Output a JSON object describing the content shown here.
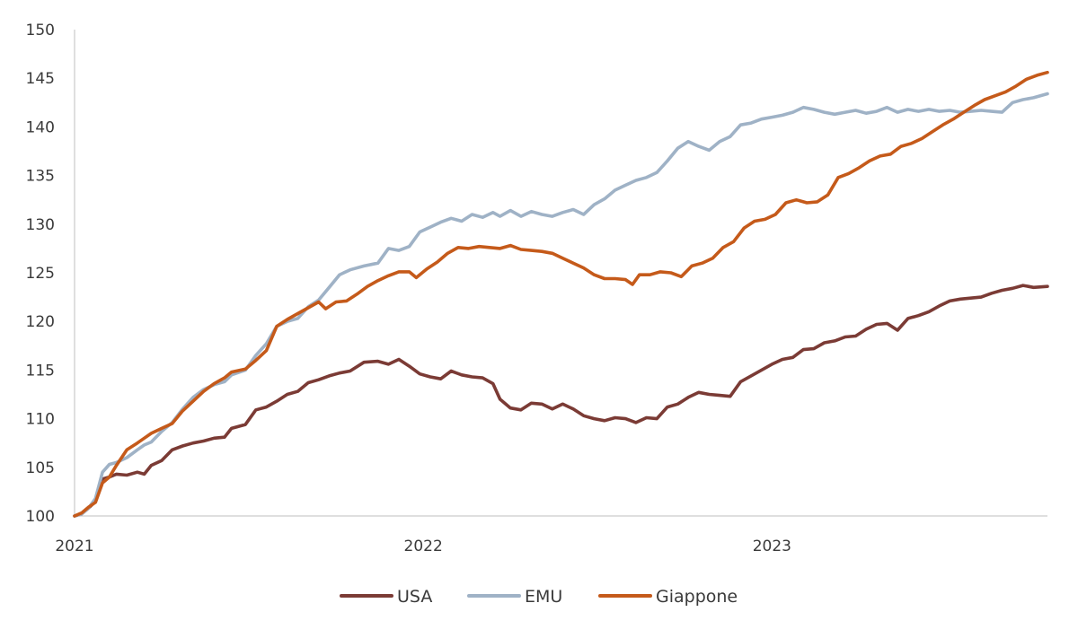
{
  "chart_data": {
    "type": "line",
    "title": "",
    "xlabel": "",
    "ylabel": "",
    "xlim": [
      2021.0,
      2023.79
    ],
    "ylim": [
      100,
      150
    ],
    "x_ticks": [
      "2021",
      "2022",
      "2023"
    ],
    "y_ticks": [
      "100",
      "105",
      "110",
      "115",
      "120",
      "125",
      "130",
      "135",
      "140",
      "145",
      "150"
    ],
    "grid": false,
    "legend_position": "bottom-center",
    "series": [
      {
        "name": "USA",
        "color": "#7b3b35",
        "points": [
          [
            2021.0,
            100.0
          ],
          [
            2021.02,
            100.2
          ],
          [
            2021.04,
            100.8
          ],
          [
            2021.06,
            101.5
          ],
          [
            2021.08,
            103.8
          ],
          [
            2021.1,
            104.0
          ],
          [
            2021.12,
            104.3
          ],
          [
            2021.15,
            104.2
          ],
          [
            2021.18,
            104.5
          ],
          [
            2021.2,
            104.3
          ],
          [
            2021.22,
            105.2
          ],
          [
            2021.25,
            105.7
          ],
          [
            2021.28,
            106.8
          ],
          [
            2021.31,
            107.2
          ],
          [
            2021.34,
            107.5
          ],
          [
            2021.37,
            107.7
          ],
          [
            2021.4,
            108.0
          ],
          [
            2021.43,
            108.1
          ],
          [
            2021.45,
            109.0
          ],
          [
            2021.49,
            109.4
          ],
          [
            2021.52,
            110.9
          ],
          [
            2021.55,
            111.2
          ],
          [
            2021.58,
            111.8
          ],
          [
            2021.61,
            112.5
          ],
          [
            2021.64,
            112.8
          ],
          [
            2021.67,
            113.7
          ],
          [
            2021.7,
            114.0
          ],
          [
            2021.73,
            114.4
          ],
          [
            2021.76,
            114.7
          ],
          [
            2021.79,
            114.9
          ],
          [
            2021.83,
            115.8
          ],
          [
            2021.87,
            115.9
          ],
          [
            2021.9,
            115.6
          ],
          [
            2021.93,
            116.1
          ],
          [
            2021.96,
            115.4
          ],
          [
            2021.99,
            114.6
          ],
          [
            2022.02,
            114.3
          ],
          [
            2022.05,
            114.1
          ],
          [
            2022.08,
            114.9
          ],
          [
            2022.11,
            114.5
          ],
          [
            2022.14,
            114.3
          ],
          [
            2022.17,
            114.2
          ],
          [
            2022.2,
            113.6
          ],
          [
            2022.22,
            112.0
          ],
          [
            2022.25,
            111.1
          ],
          [
            2022.28,
            110.9
          ],
          [
            2022.31,
            111.6
          ],
          [
            2022.34,
            111.5
          ],
          [
            2022.37,
            111.0
          ],
          [
            2022.4,
            111.5
          ],
          [
            2022.43,
            111.0
          ],
          [
            2022.46,
            110.3
          ],
          [
            2022.49,
            110.0
          ],
          [
            2022.52,
            109.8
          ],
          [
            2022.55,
            110.1
          ],
          [
            2022.58,
            110.0
          ],
          [
            2022.61,
            109.6
          ],
          [
            2022.64,
            110.1
          ],
          [
            2022.67,
            110.0
          ],
          [
            2022.7,
            111.2
          ],
          [
            2022.73,
            111.5
          ],
          [
            2022.76,
            112.2
          ],
          [
            2022.79,
            112.7
          ],
          [
            2022.82,
            112.5
          ],
          [
            2022.85,
            112.4
          ],
          [
            2022.88,
            112.3
          ],
          [
            2022.91,
            113.8
          ],
          [
            2022.94,
            114.4
          ],
          [
            2022.97,
            115.0
          ],
          [
            2023.0,
            115.6
          ],
          [
            2023.03,
            116.1
          ],
          [
            2023.06,
            116.3
          ],
          [
            2023.09,
            117.1
          ],
          [
            2023.12,
            117.2
          ],
          [
            2023.15,
            117.8
          ],
          [
            2023.18,
            118.0
          ],
          [
            2023.21,
            118.4
          ],
          [
            2023.24,
            118.5
          ],
          [
            2023.27,
            119.2
          ],
          [
            2023.3,
            119.7
          ],
          [
            2023.33,
            119.8
          ],
          [
            2023.36,
            119.1
          ],
          [
            2023.39,
            120.3
          ],
          [
            2023.42,
            120.6
          ],
          [
            2023.45,
            121.0
          ],
          [
            2023.48,
            121.6
          ],
          [
            2023.51,
            122.1
          ],
          [
            2023.54,
            122.3
          ],
          [
            2023.57,
            122.4
          ],
          [
            2023.6,
            122.5
          ],
          [
            2023.63,
            122.9
          ],
          [
            2023.66,
            123.2
          ],
          [
            2023.69,
            123.4
          ],
          [
            2023.72,
            123.7
          ],
          [
            2023.75,
            123.5
          ],
          [
            2023.79,
            123.6
          ]
        ]
      },
      {
        "name": "EMU",
        "color": "#9fb2c6",
        "points": [
          [
            2021.0,
            100.0
          ],
          [
            2021.02,
            100.2
          ],
          [
            2021.04,
            100.8
          ],
          [
            2021.06,
            101.8
          ],
          [
            2021.08,
            104.5
          ],
          [
            2021.1,
            105.3
          ],
          [
            2021.12,
            105.5
          ],
          [
            2021.15,
            106.0
          ],
          [
            2021.18,
            106.8
          ],
          [
            2021.2,
            107.3
          ],
          [
            2021.22,
            107.6
          ],
          [
            2021.25,
            108.7
          ],
          [
            2021.28,
            109.6
          ],
          [
            2021.31,
            111.0
          ],
          [
            2021.34,
            112.2
          ],
          [
            2021.37,
            113.0
          ],
          [
            2021.4,
            113.5
          ],
          [
            2021.43,
            113.8
          ],
          [
            2021.45,
            114.5
          ],
          [
            2021.49,
            115.0
          ],
          [
            2021.52,
            116.5
          ],
          [
            2021.55,
            117.7
          ],
          [
            2021.58,
            119.5
          ],
          [
            2021.61,
            120.0
          ],
          [
            2021.64,
            120.3
          ],
          [
            2021.67,
            121.5
          ],
          [
            2021.7,
            122.2
          ],
          [
            2021.73,
            123.5
          ],
          [
            2021.76,
            124.8
          ],
          [
            2021.79,
            125.3
          ],
          [
            2021.83,
            125.7
          ],
          [
            2021.87,
            126.0
          ],
          [
            2021.9,
            127.5
          ],
          [
            2021.93,
            127.3
          ],
          [
            2021.96,
            127.7
          ],
          [
            2021.99,
            129.2
          ],
          [
            2022.02,
            129.7
          ],
          [
            2022.05,
            130.2
          ],
          [
            2022.08,
            130.6
          ],
          [
            2022.11,
            130.3
          ],
          [
            2022.14,
            131.0
          ],
          [
            2022.17,
            130.7
          ],
          [
            2022.2,
            131.2
          ],
          [
            2022.22,
            130.8
          ],
          [
            2022.25,
            131.4
          ],
          [
            2022.28,
            130.8
          ],
          [
            2022.31,
            131.3
          ],
          [
            2022.34,
            131.0
          ],
          [
            2022.37,
            130.8
          ],
          [
            2022.4,
            131.2
          ],
          [
            2022.43,
            131.5
          ],
          [
            2022.46,
            131.0
          ],
          [
            2022.49,
            132.0
          ],
          [
            2022.52,
            132.6
          ],
          [
            2022.55,
            133.5
          ],
          [
            2022.58,
            134.0
          ],
          [
            2022.61,
            134.5
          ],
          [
            2022.64,
            134.8
          ],
          [
            2022.67,
            135.3
          ],
          [
            2022.7,
            136.5
          ],
          [
            2022.73,
            137.8
          ],
          [
            2022.76,
            138.5
          ],
          [
            2022.79,
            138.0
          ],
          [
            2022.82,
            137.6
          ],
          [
            2022.85,
            138.5
          ],
          [
            2022.88,
            139.0
          ],
          [
            2022.91,
            140.2
          ],
          [
            2022.94,
            140.4
          ],
          [
            2022.97,
            140.8
          ],
          [
            2023.0,
            141.0
          ],
          [
            2023.03,
            141.2
          ],
          [
            2023.06,
            141.5
          ],
          [
            2023.09,
            142.0
          ],
          [
            2023.12,
            141.8
          ],
          [
            2023.15,
            141.5
          ],
          [
            2023.18,
            141.3
          ],
          [
            2023.21,
            141.5
          ],
          [
            2023.24,
            141.7
          ],
          [
            2023.27,
            141.4
          ],
          [
            2023.3,
            141.6
          ],
          [
            2023.33,
            142.0
          ],
          [
            2023.36,
            141.5
          ],
          [
            2023.39,
            141.8
          ],
          [
            2023.42,
            141.6
          ],
          [
            2023.45,
            141.8
          ],
          [
            2023.48,
            141.6
          ],
          [
            2023.51,
            141.7
          ],
          [
            2023.54,
            141.5
          ],
          [
            2023.57,
            141.6
          ],
          [
            2023.6,
            141.7
          ],
          [
            2023.63,
            141.6
          ],
          [
            2023.66,
            141.5
          ],
          [
            2023.69,
            142.5
          ],
          [
            2023.72,
            142.8
          ],
          [
            2023.75,
            143.0
          ],
          [
            2023.79,
            143.4
          ]
        ]
      },
      {
        "name": "Giappone",
        "color": "#c55a1a",
        "points": [
          [
            2021.0,
            100.0
          ],
          [
            2021.02,
            100.3
          ],
          [
            2021.04,
            100.9
          ],
          [
            2021.06,
            101.4
          ],
          [
            2021.08,
            103.4
          ],
          [
            2021.1,
            104.0
          ],
          [
            2021.12,
            105.2
          ],
          [
            2021.15,
            106.8
          ],
          [
            2021.18,
            107.5
          ],
          [
            2021.2,
            108.0
          ],
          [
            2021.22,
            108.5
          ],
          [
            2021.25,
            109.0
          ],
          [
            2021.28,
            109.5
          ],
          [
            2021.31,
            110.8
          ],
          [
            2021.34,
            111.8
          ],
          [
            2021.37,
            112.8
          ],
          [
            2021.4,
            113.6
          ],
          [
            2021.43,
            114.2
          ],
          [
            2021.45,
            114.8
          ],
          [
            2021.49,
            115.1
          ],
          [
            2021.52,
            116.0
          ],
          [
            2021.55,
            117.0
          ],
          [
            2021.58,
            119.5
          ],
          [
            2021.61,
            120.2
          ],
          [
            2021.64,
            120.8
          ],
          [
            2021.67,
            121.4
          ],
          [
            2021.7,
            122.0
          ],
          [
            2021.72,
            121.3
          ],
          [
            2021.75,
            122.0
          ],
          [
            2021.78,
            122.1
          ],
          [
            2021.81,
            122.8
          ],
          [
            2021.84,
            123.6
          ],
          [
            2021.87,
            124.2
          ],
          [
            2021.9,
            124.7
          ],
          [
            2021.93,
            125.1
          ],
          [
            2021.96,
            125.1
          ],
          [
            2021.98,
            124.5
          ],
          [
            2022.01,
            125.4
          ],
          [
            2022.04,
            126.1
          ],
          [
            2022.07,
            127.0
          ],
          [
            2022.1,
            127.6
          ],
          [
            2022.13,
            127.5
          ],
          [
            2022.16,
            127.7
          ],
          [
            2022.19,
            127.6
          ],
          [
            2022.22,
            127.5
          ],
          [
            2022.25,
            127.8
          ],
          [
            2022.28,
            127.4
          ],
          [
            2022.31,
            127.3
          ],
          [
            2022.34,
            127.2
          ],
          [
            2022.37,
            127.0
          ],
          [
            2022.4,
            126.5
          ],
          [
            2022.43,
            126.0
          ],
          [
            2022.46,
            125.5
          ],
          [
            2022.49,
            124.8
          ],
          [
            2022.52,
            124.4
          ],
          [
            2022.55,
            124.4
          ],
          [
            2022.58,
            124.3
          ],
          [
            2022.6,
            123.8
          ],
          [
            2022.62,
            124.8
          ],
          [
            2022.65,
            124.8
          ],
          [
            2022.68,
            125.1
          ],
          [
            2022.71,
            125.0
          ],
          [
            2022.74,
            124.6
          ],
          [
            2022.77,
            125.7
          ],
          [
            2022.8,
            126.0
          ],
          [
            2022.83,
            126.5
          ],
          [
            2022.86,
            127.6
          ],
          [
            2022.89,
            128.2
          ],
          [
            2022.92,
            129.6
          ],
          [
            2022.95,
            130.3
          ],
          [
            2022.98,
            130.5
          ],
          [
            2023.01,
            131.0
          ],
          [
            2023.04,
            132.2
          ],
          [
            2023.07,
            132.5
          ],
          [
            2023.1,
            132.2
          ],
          [
            2023.13,
            132.3
          ],
          [
            2023.16,
            133.0
          ],
          [
            2023.19,
            134.8
          ],
          [
            2023.22,
            135.2
          ],
          [
            2023.25,
            135.8
          ],
          [
            2023.28,
            136.5
          ],
          [
            2023.31,
            137.0
          ],
          [
            2023.34,
            137.2
          ],
          [
            2023.37,
            138.0
          ],
          [
            2023.4,
            138.3
          ],
          [
            2023.43,
            138.8
          ],
          [
            2023.46,
            139.5
          ],
          [
            2023.49,
            140.2
          ],
          [
            2023.52,
            140.8
          ],
          [
            2023.55,
            141.5
          ],
          [
            2023.58,
            142.2
          ],
          [
            2023.61,
            142.8
          ],
          [
            2023.64,
            143.2
          ],
          [
            2023.67,
            143.6
          ],
          [
            2023.7,
            144.2
          ],
          [
            2023.73,
            144.9
          ],
          [
            2023.76,
            145.3
          ],
          [
            2023.79,
            145.6
          ]
        ]
      }
    ]
  }
}
